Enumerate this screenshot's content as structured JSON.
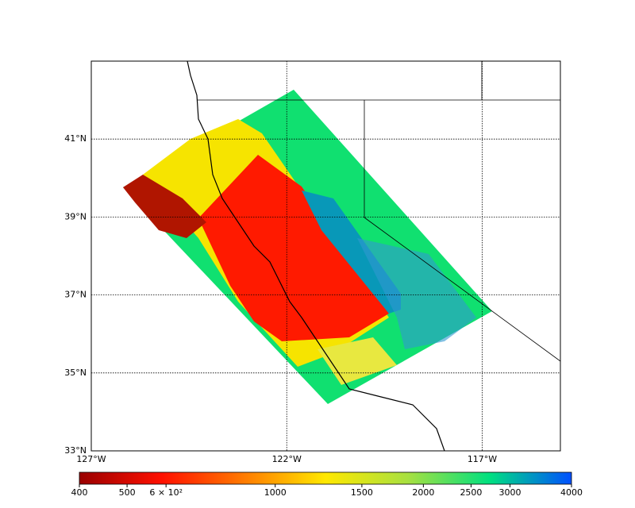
{
  "map": {
    "type": "map",
    "xlim": [
      -127,
      -115
    ],
    "ylim": [
      33,
      43
    ],
    "xticks": [
      {
        "value": -127,
        "label": "127°W"
      },
      {
        "value": -122,
        "label": "122°W"
      },
      {
        "value": -117,
        "label": "117°W"
      }
    ],
    "yticks": [
      {
        "value": 33,
        "label": "33°N"
      },
      {
        "value": 35,
        "label": "35°N"
      },
      {
        "value": 37,
        "label": "37°N"
      },
      {
        "value": 39,
        "label": "39°N"
      },
      {
        "value": 41,
        "label": "41°N"
      }
    ],
    "grid": true
  },
  "colorbar": {
    "scale": "log",
    "lim": [
      400,
      4000
    ],
    "ticks": [
      400,
      500,
      {
        "value": 600,
        "label": "6 × 10²"
      },
      1000,
      1500,
      2000,
      2500,
      3000,
      4000
    ],
    "colors": [
      "#990000",
      "#ff1000",
      "#ff7a00",
      "#ffe800",
      "#a8e040",
      "#00e080",
      "#0050ff"
    ]
  }
}
